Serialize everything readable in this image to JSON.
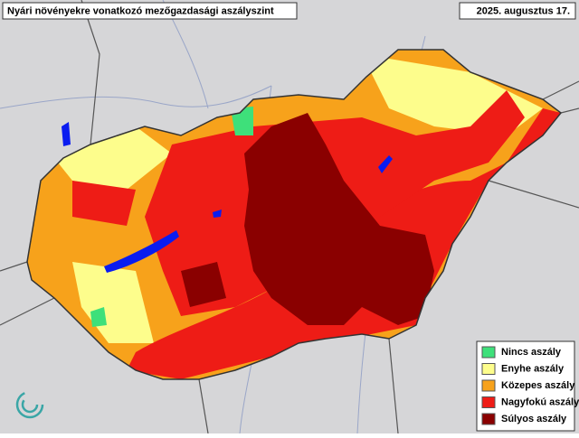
{
  "header": {
    "title": "Nyári növényekre vonatkozó mezőgazdasági aszályszint",
    "date": "2025. augusztus 17."
  },
  "legend": {
    "items": [
      {
        "label": "Nincs aszály",
        "color": "#3ee07a"
      },
      {
        "label": "Enyhe aszály",
        "color": "#fdfd8c"
      },
      {
        "label": "Közepes aszály",
        "color": "#f7a21b"
      },
      {
        "label": "Nagyfokú aszály",
        "color": "#ee1c16"
      },
      {
        "label": "Súlyos aszály",
        "color": "#8a0000"
      }
    ]
  }
}
